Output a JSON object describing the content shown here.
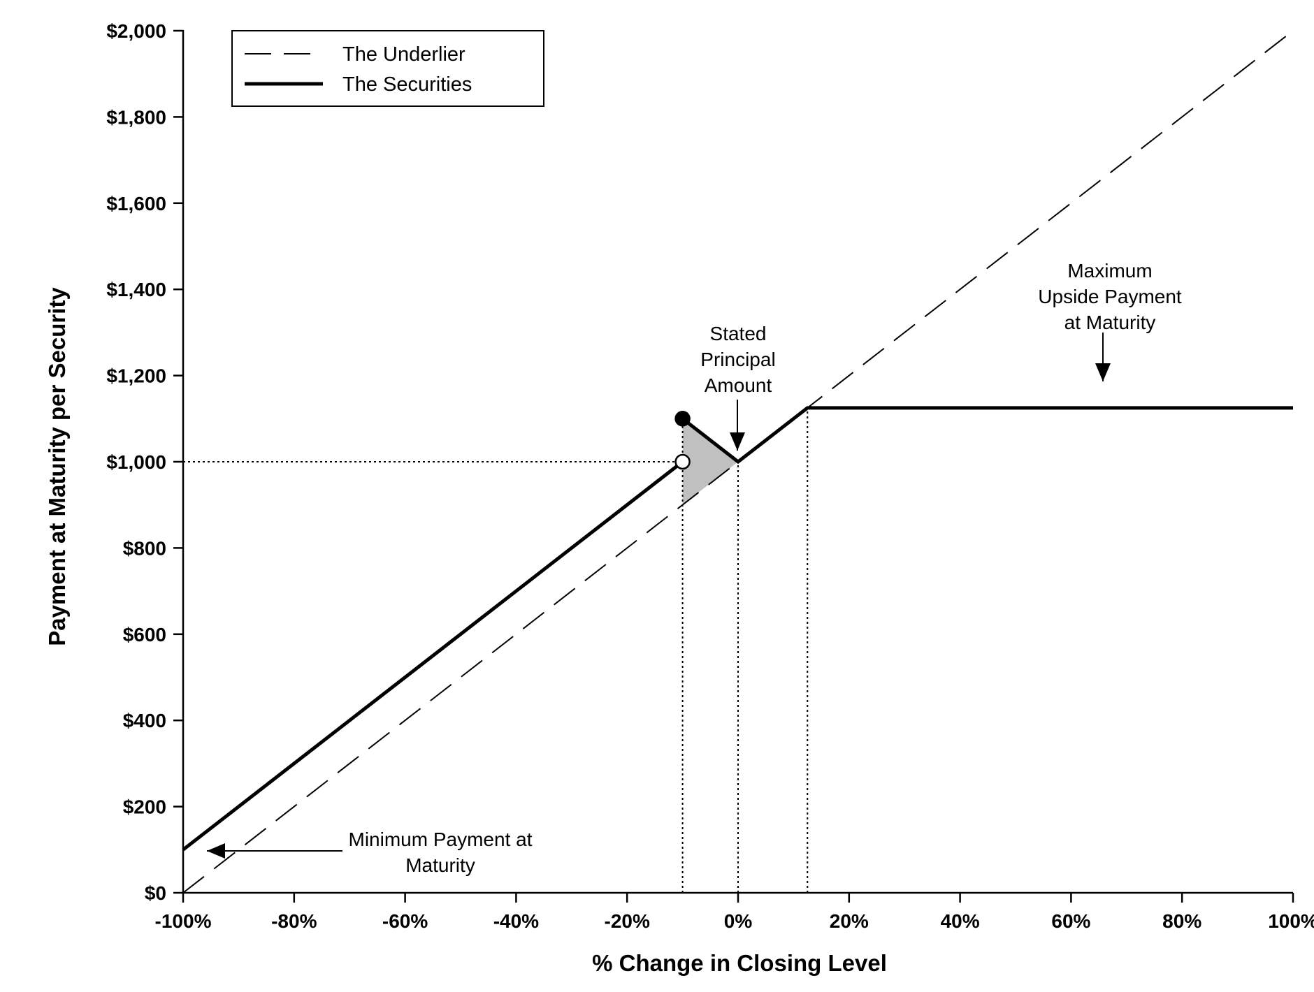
{
  "chart_data": {
    "type": "line",
    "xlabel": "% Change in Closing Level",
    "ylabel": "Payment at Maturity per Security",
    "xlim": [
      -100,
      100
    ],
    "ylim": [
      0,
      2000
    ],
    "x_ticks": [
      -100,
      -80,
      -60,
      -40,
      -20,
      0,
      20,
      40,
      60,
      80,
      100
    ],
    "x_tick_labels": [
      "-100%",
      "-80%",
      "-60%",
      "-40%",
      "-20%",
      "0%",
      "20%",
      "40%",
      "60%",
      "80%",
      "100%"
    ],
    "y_ticks": [
      0,
      200,
      400,
      600,
      800,
      1000,
      1200,
      1400,
      1600,
      1800,
      2000
    ],
    "y_tick_labels": [
      "$0",
      "$200",
      "$400",
      "$600",
      "$800",
      "$1,000",
      "$1,200",
      "$1,400",
      "$1,600",
      "$1,800",
      "$2,000"
    ],
    "legend_position": "top-left",
    "grid": false,
    "series": [
      {
        "name": "The Underlier",
        "style": "dashed",
        "points": [
          [
            -100,
            0
          ],
          [
            100,
            2000
          ]
        ]
      },
      {
        "name": "The Securities",
        "style": "solid-thick",
        "segments": [
          [
            [
              -100,
              100
            ],
            [
              -10,
              1000
            ]
          ],
          [
            [
              -10,
              1100
            ],
            [
              0,
              1000
            ],
            [
              12.5,
              1125
            ],
            [
              100,
              1125
            ]
          ]
        ],
        "markers": [
          {
            "x": -10,
            "y": 1100,
            "fill": "filled"
          },
          {
            "x": -10,
            "y": 1000,
            "fill": "open"
          }
        ]
      }
    ],
    "shaded_region": [
      [
        -10,
        1100
      ],
      [
        0,
        1000
      ],
      [
        -10,
        900
      ]
    ],
    "reference_lines": {
      "horizontal": [
        {
          "y": 1000,
          "x_from": -100,
          "x_to": -10
        }
      ],
      "vertical": [
        {
          "x": -10,
          "y_from": 0,
          "y_to": 1100
        },
        {
          "x": 0,
          "y_from": 0,
          "y_to": 1000
        },
        {
          "x": 12.5,
          "y_from": 0,
          "y_to": 1125
        }
      ]
    },
    "annotations": [
      {
        "lines": [
          "Stated",
          "Principal",
          "Amount"
        ],
        "points_to": [
          0,
          1000
        ]
      },
      {
        "lines": [
          "Maximum",
          "Upside Payment",
          "at Maturity"
        ],
        "points_to": [
          65,
          1125
        ]
      },
      {
        "lines": [
          "Minimum Payment at",
          "Maturity"
        ],
        "points_to": [
          -95,
          100
        ]
      }
    ],
    "colors": {
      "line": "#000000",
      "shade": "#c0c0c0",
      "background": "#ffffff"
    }
  }
}
